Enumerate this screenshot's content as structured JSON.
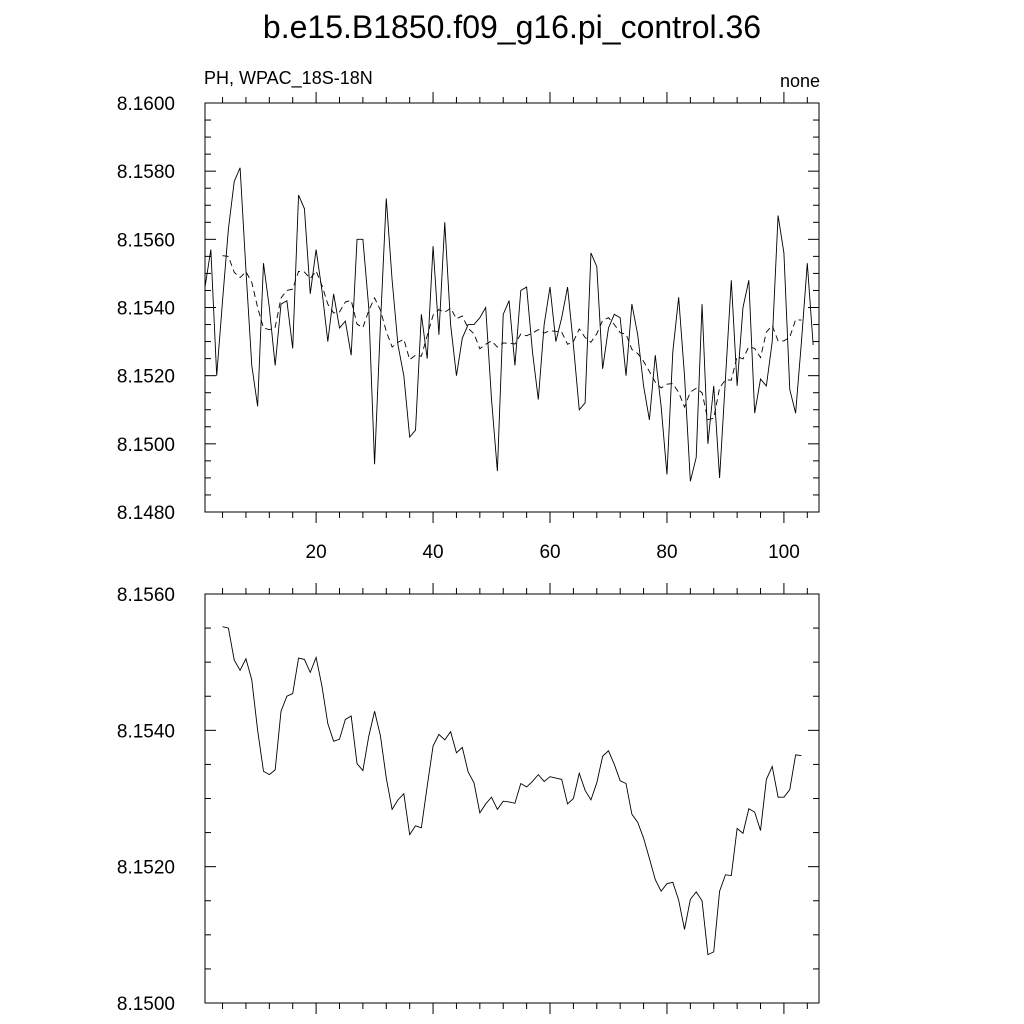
{
  "title": "b.e15.B1850.f09_g16.pi_control.36",
  "left_string": "PH, WPAC_18S-18N",
  "right_string": "none",
  "chart_data": [
    {
      "type": "line",
      "title": "",
      "xlabel": "",
      "ylabel": "",
      "xlim": [
        1,
        106
      ],
      "ylim": [
        8.148,
        8.16
      ],
      "x_ticks": [
        20,
        40,
        60,
        80,
        100
      ],
      "y_ticks": [
        "8.1480",
        "8.1500",
        "8.1520",
        "8.1540",
        "8.1560",
        "8.1580",
        "8.1600"
      ],
      "series": [
        {
          "style": "solid",
          "x_start": 1,
          "values": [
            8.1546,
            8.1557,
            8.152,
            8.1542,
            8.1563,
            8.1577,
            8.1581,
            8.1551,
            8.1523,
            8.1511,
            8.1553,
            8.154,
            8.1523,
            8.1541,
            8.1542,
            8.1528,
            8.1573,
            8.1569,
            8.1544,
            8.1557,
            8.1545,
            8.153,
            8.1544,
            8.1534,
            8.1536,
            8.1526,
            8.156,
            8.156,
            8.154,
            8.1494,
            8.1535,
            8.1572,
            8.1548,
            8.1529,
            8.152,
            8.1502,
            8.1504,
            8.1538,
            8.1525,
            8.1558,
            8.1532,
            8.1565,
            8.1535,
            8.152,
            8.1531,
            8.1535,
            8.1535,
            8.1537,
            8.154,
            8.1513,
            8.1492,
            8.1538,
            8.1542,
            8.1523,
            8.1545,
            8.1546,
            8.1527,
            8.1513,
            8.1535,
            8.1546,
            8.153,
            8.1537,
            8.1546,
            8.1529,
            8.151,
            8.1512,
            8.1556,
            8.1552,
            8.1522,
            8.1534,
            8.1538,
            8.1537,
            8.152,
            8.1541,
            8.1532,
            8.1517,
            8.1507,
            8.1526,
            8.1511,
            8.1491,
            8.1527,
            8.1543,
            8.152,
            8.1489,
            8.1496,
            8.1541,
            8.15,
            8.1517,
            8.149,
            8.1519,
            8.1548,
            8.1517,
            8.154,
            8.1548,
            8.1509,
            8.1519,
            8.1517,
            8.153,
            8.1567,
            8.1556,
            8.1516,
            8.1509,
            8.153,
            8.1553,
            8.1529
          ]
        },
        {
          "style": "dashed",
          "x_start": 4,
          "values": [
            8.15552,
            8.1555,
            8.15503,
            8.15488,
            8.15505,
            8.15474,
            8.154,
            8.1534,
            8.15335,
            8.15342,
            8.15428,
            8.1545,
            8.15454,
            8.15506,
            8.15504,
            8.15485,
            8.15507,
            8.15465,
            8.1541,
            8.15384,
            8.15387,
            8.15416,
            8.15421,
            8.15351,
            8.15341,
            8.15391,
            8.15428,
            8.15392,
            8.1533,
            8.15284,
            8.15298,
            8.15307,
            8.15247,
            8.1526,
            8.15257,
            8.15318,
            8.15377,
            8.15394,
            8.15386,
            8.15398,
            8.15367,
            8.15375,
            8.15339,
            8.15323,
            8.15279,
            8.15292,
            8.15302,
            8.15284,
            8.15296,
            8.15295,
            8.15293,
            8.15322,
            8.15317,
            8.15325,
            8.15335,
            8.15325,
            8.15332,
            8.1533,
            8.15328,
            8.15292,
            8.153,
            8.15337,
            8.15312,
            8.15298,
            8.15323,
            8.15362,
            8.1537,
            8.1535,
            8.15326,
            8.15322,
            8.15277,
            8.15265,
            8.15242,
            8.15212,
            8.15181,
            8.15164,
            8.15175,
            8.15177,
            8.15151,
            8.15108,
            8.15152,
            8.15163,
            8.1515,
            8.15071,
            8.15075,
            8.15164,
            8.15188,
            8.15187,
            8.15256,
            8.15249,
            8.15285,
            8.1528,
            8.15253,
            8.15328,
            8.15347,
            8.15302,
            8.15302,
            8.15313,
            8.15364,
            8.15363
          ]
        }
      ]
    },
    {
      "type": "line",
      "title": "",
      "xlabel": "",
      "ylabel": "",
      "xlim": [
        1,
        106
      ],
      "ylim": [
        8.15,
        8.156
      ],
      "x_ticks": [
        20,
        40,
        60,
        80,
        100
      ],
      "y_ticks": [
        "8.1500",
        "8.1520",
        "8.1540",
        "8.1560"
      ],
      "series": [
        {
          "style": "solid",
          "x_start": 4,
          "values": [
            8.15552,
            8.1555,
            8.15503,
            8.15488,
            8.15505,
            8.15474,
            8.154,
            8.1534,
            8.15335,
            8.15342,
            8.15428,
            8.1545,
            8.15454,
            8.15506,
            8.15504,
            8.15485,
            8.15507,
            8.15465,
            8.1541,
            8.15384,
            8.15387,
            8.15416,
            8.15421,
            8.15351,
            8.15341,
            8.15391,
            8.15428,
            8.15392,
            8.1533,
            8.15284,
            8.15298,
            8.15307,
            8.15247,
            8.1526,
            8.15257,
            8.15318,
            8.15377,
            8.15394,
            8.15386,
            8.15398,
            8.15367,
            8.15375,
            8.15339,
            8.15323,
            8.15279,
            8.15292,
            8.15302,
            8.15284,
            8.15296,
            8.15295,
            8.15293,
            8.15322,
            8.15317,
            8.15325,
            8.15335,
            8.15325,
            8.15332,
            8.1533,
            8.15328,
            8.15292,
            8.153,
            8.15337,
            8.15312,
            8.15298,
            8.15323,
            8.15362,
            8.1537,
            8.1535,
            8.15326,
            8.15322,
            8.15277,
            8.15265,
            8.15242,
            8.15212,
            8.15181,
            8.15164,
            8.15175,
            8.15177,
            8.15151,
            8.15108,
            8.15152,
            8.15163,
            8.1515,
            8.15071,
            8.15075,
            8.15164,
            8.15188,
            8.15187,
            8.15256,
            8.15249,
            8.15285,
            8.1528,
            8.15253,
            8.15328,
            8.15347,
            8.15302,
            8.15302,
            8.15313,
            8.15364,
            8.15363
          ]
        }
      ]
    }
  ]
}
